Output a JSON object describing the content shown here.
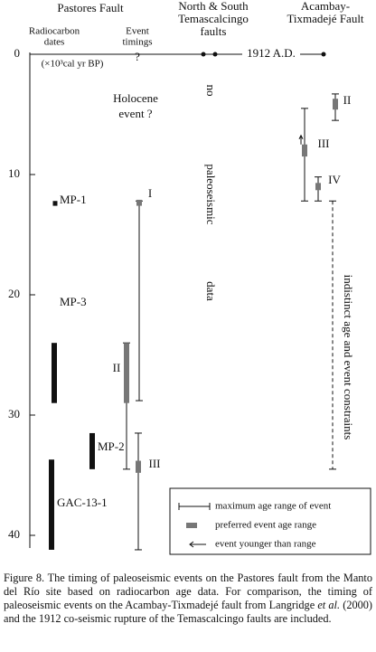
{
  "chart_data": {
    "type": "range",
    "headers": {
      "pastores": "Pastores Fault",
      "dates": [
        "Radiocarbon",
        "dates"
      ],
      "timings": [
        "Event",
        "timings"
      ],
      "question": "?",
      "temascalcingo": [
        "North & South",
        "Temascalcingo",
        "faults"
      ],
      "acambay": [
        "Acambay-",
        "Tixmadejé Fault"
      ]
    },
    "y_label": "(×10³cal yr BP)",
    "ylim": [
      0,
      41
    ],
    "yticks": [
      0,
      10,
      20,
      30,
      40
    ],
    "rupture_1912": {
      "label": "1912 A.D.",
      "value": 0
    },
    "holocene": [
      "Holocene",
      "event ?"
    ],
    "no_data": [
      "no",
      "paleoseismic",
      "data"
    ],
    "dates": [
      {
        "name": "MP-1",
        "range": [
          12.2,
          12.6
        ]
      },
      {
        "name": "MP-3",
        "range": [
          24,
          29
        ]
      },
      {
        "name": "MP-2",
        "range": [
          31.5,
          34.5
        ]
      },
      {
        "name": "GAC-13-1",
        "range": [
          33.7,
          41.2
        ]
      }
    ],
    "pastores_events": [
      {
        "name": "I",
        "range": [
          12.2,
          28.8
        ],
        "preferred": [
          12.1,
          12.6
        ]
      },
      {
        "name": "II",
        "range": [
          24,
          34.5
        ],
        "preferred": [
          24,
          29
        ]
      },
      {
        "name": "III",
        "range": [
          31.5,
          41.2
        ],
        "preferred": [
          33.8,
          34.8
        ]
      }
    ],
    "acambay_events": [
      {
        "name": "II",
        "range": [
          3.3,
          5.5
        ],
        "preferred": [
          3.7,
          4.6
        ]
      },
      {
        "name": "III",
        "range": [
          4.5,
          12.2
        ],
        "preferred": [
          7.5,
          8.5
        ]
      },
      {
        "name": "IV",
        "range": [
          10.2,
          12.2
        ],
        "preferred": [
          10.7,
          11.3
        ]
      }
    ],
    "indistinct": {
      "label": "indistinct age and event constraints",
      "range": [
        12.2,
        34.5
      ]
    },
    "legend": [
      "maximum age range of event",
      "preferred event age range",
      "event younger than range"
    ]
  },
  "caption": [
    "Figure 8. The timing of paleoseismic events on the Pastores fault from the Manto del Río site based on radiocarbon age data. For comparison, the timing of paleoseismic events on the Acambay-Tixmadejé fault from Langridge ",
    "et al.",
    " (2000) and the 1912 co-seismic rupture of the Temascalcingo faults are included."
  ]
}
